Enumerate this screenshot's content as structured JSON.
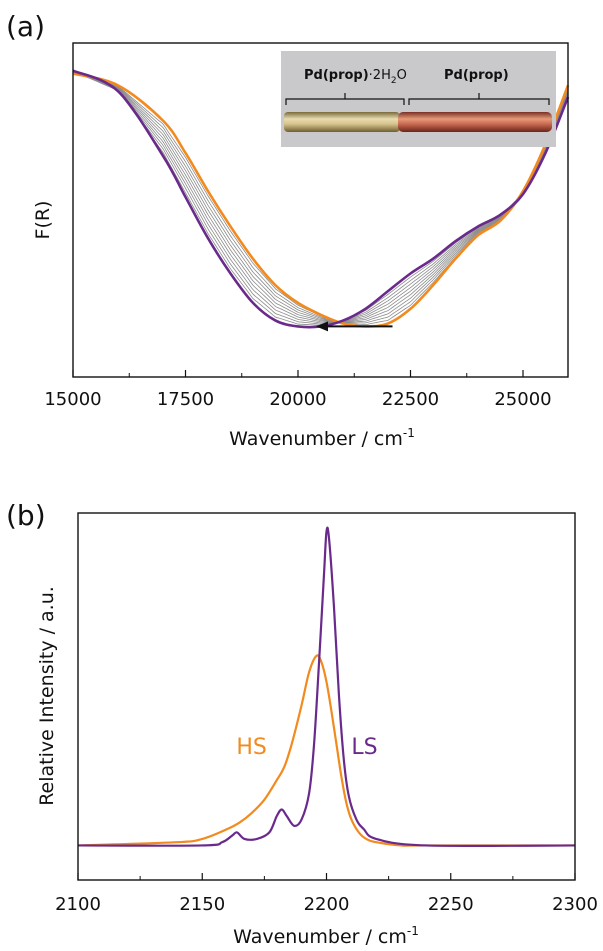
{
  "colors": {
    "orange": "#f28a1e",
    "purple": "#6a2a8c",
    "gray": "#8c8c8c"
  },
  "chart_data": [
    {
      "panel": "(a)",
      "type": "line",
      "xlabel": "Wavenumber / cm",
      "xlabel_sup": "-1",
      "ylabel": "F(R)",
      "xlim": [
        15000,
        26000
      ],
      "ylim": [
        0,
        1
      ],
      "xticks": [
        "15000",
        "17500",
        "20000",
        "22500",
        "25000"
      ],
      "inset": {
        "left_label": "Pd(prop)",
        "left_label_suffix": "·2H",
        "left_label_sub": "2",
        "left_label_end": "O",
        "right_label": "Pd(prop)"
      },
      "arrow": {
        "from": 22100,
        "to": 20400,
        "y": 0.07
      },
      "series": [
        {
          "color": "orange",
          "x": [
            15000,
            16000,
            17000,
            17500,
            18000,
            18500,
            19000,
            19500,
            20000,
            20500,
            21000,
            21500,
            22000,
            22500,
            23000,
            23500,
            24000,
            24500,
            25000,
            25500,
            26000
          ],
          "y": [
            0.93,
            0.89,
            0.77,
            0.66,
            0.53,
            0.41,
            0.3,
            0.21,
            0.15,
            0.11,
            0.08,
            0.07,
            0.08,
            0.13,
            0.21,
            0.3,
            0.38,
            0.43,
            0.53,
            0.69,
            0.89
          ]
        },
        {
          "color": "purple",
          "x": [
            15000,
            16000,
            17000,
            17500,
            18000,
            18500,
            19000,
            19500,
            20000,
            20500,
            21000,
            21500,
            22000,
            22500,
            23000,
            23500,
            24000,
            24500,
            25000,
            25500,
            26000
          ],
          "y": [
            0.94,
            0.87,
            0.65,
            0.51,
            0.37,
            0.25,
            0.15,
            0.09,
            0.07,
            0.07,
            0.09,
            0.13,
            0.19,
            0.25,
            0.3,
            0.36,
            0.41,
            0.45,
            0.52,
            0.66,
            0.85
          ]
        }
      ]
    },
    {
      "panel": "(b)",
      "type": "line",
      "xlabel": "Wavenumber / cm",
      "xlabel_sup": "-1",
      "ylabel": "Relative Intensity / a.u.",
      "xlim": [
        2100,
        2300
      ],
      "ylim": [
        0,
        1
      ],
      "xticks": [
        "2100",
        "2150",
        "2200",
        "2250",
        "2300"
      ],
      "annotations": [
        {
          "text": "HS",
          "color": "orange",
          "x": 2176,
          "y": 0.3
        },
        {
          "text": "LS",
          "color": "purple",
          "x": 2210,
          "y": 0.3
        }
      ],
      "series": [
        {
          "name": "HS",
          "color": "orange",
          "x": [
            2100,
            2140,
            2150,
            2160,
            2165,
            2170,
            2175,
            2180,
            2183,
            2186,
            2190,
            2193,
            2196,
            2198,
            2200,
            2202,
            2204,
            2206,
            2208,
            2210,
            2213,
            2216,
            2220,
            2230,
            2240,
            2300
          ],
          "y": [
            0.02,
            0.03,
            0.04,
            0.07,
            0.09,
            0.12,
            0.16,
            0.22,
            0.26,
            0.33,
            0.45,
            0.55,
            0.6,
            0.58,
            0.52,
            0.43,
            0.33,
            0.23,
            0.15,
            0.1,
            0.06,
            0.04,
            0.03,
            0.02,
            0.02,
            0.02
          ]
        },
        {
          "name": "LS",
          "color": "purple",
          "x": [
            2100,
            2150,
            2158,
            2162,
            2164,
            2167,
            2172,
            2177,
            2180,
            2182,
            2184,
            2187,
            2190,
            2193,
            2195,
            2197,
            2199,
            2200,
            2201,
            2203,
            2205,
            2207,
            2209,
            2212,
            2215,
            2220,
            2240,
            2300
          ],
          "y": [
            0.02,
            0.02,
            0.03,
            0.05,
            0.06,
            0.04,
            0.04,
            0.06,
            0.11,
            0.13,
            0.11,
            0.08,
            0.1,
            0.18,
            0.33,
            0.58,
            0.85,
            0.98,
            0.96,
            0.75,
            0.48,
            0.28,
            0.17,
            0.1,
            0.07,
            0.04,
            0.02,
            0.02
          ]
        }
      ]
    }
  ]
}
